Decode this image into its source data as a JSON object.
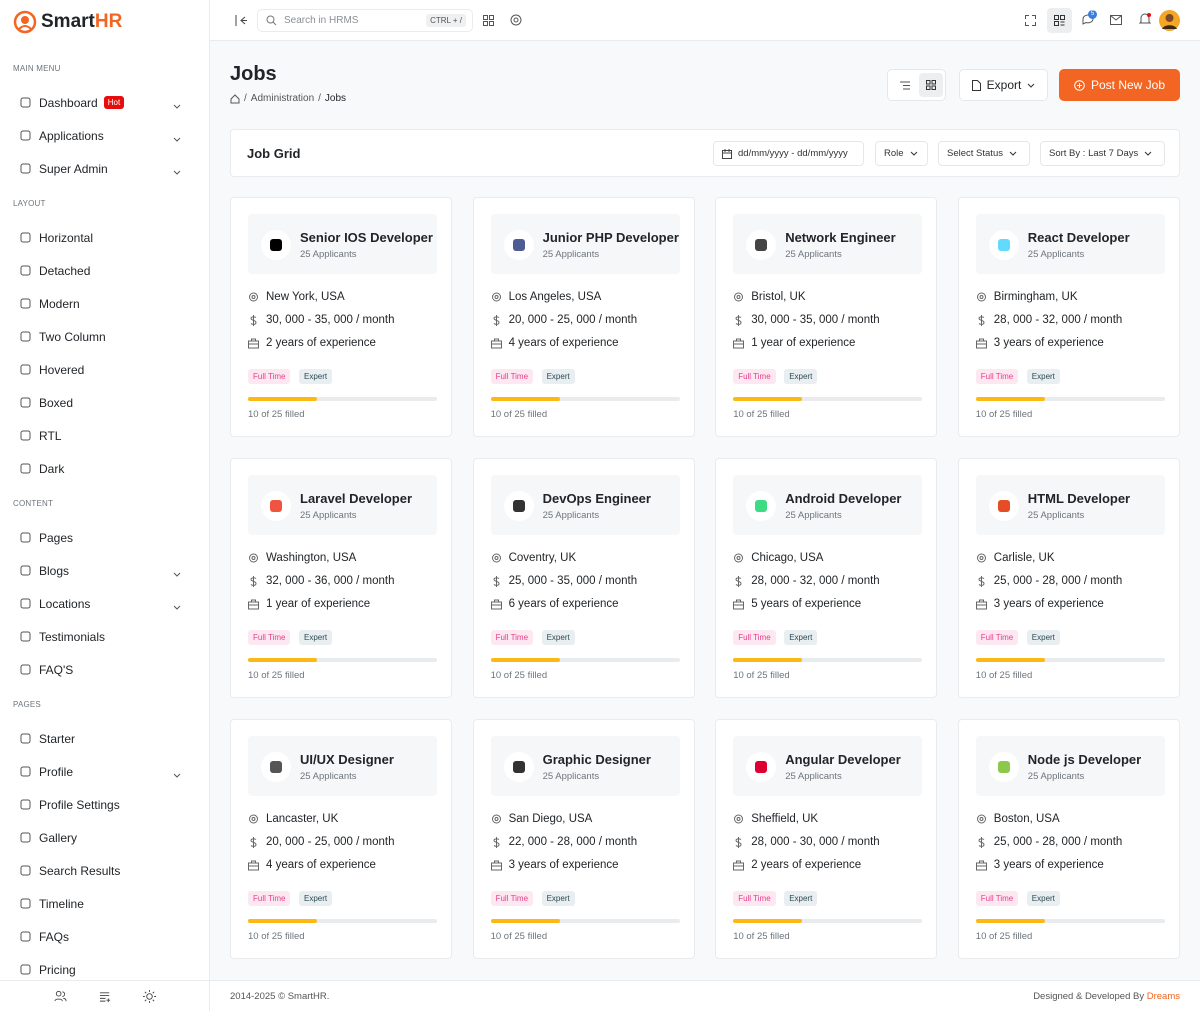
{
  "brand": {
    "name_a": "Smart",
    "name_b": "HR"
  },
  "sidebar": {
    "sections": [
      {
        "title": "MAIN MENU",
        "items": [
          {
            "label": "Dashboard",
            "badge": "Hot",
            "chevron": true
          },
          {
            "label": "Applications",
            "chevron": true
          },
          {
            "label": "Super Admin",
            "chevron": true
          }
        ]
      },
      {
        "title": "LAYOUT",
        "items": [
          {
            "label": "Horizontal"
          },
          {
            "label": "Detached"
          },
          {
            "label": "Modern"
          },
          {
            "label": "Two Column"
          },
          {
            "label": "Hovered"
          },
          {
            "label": "Boxed"
          },
          {
            "label": "RTL"
          },
          {
            "label": "Dark"
          }
        ]
      },
      {
        "title": "CONTENT",
        "items": [
          {
            "label": "Pages"
          },
          {
            "label": "Blogs",
            "chevron": true
          },
          {
            "label": "Locations",
            "chevron": true
          },
          {
            "label": "Testimonials"
          },
          {
            "label": "FAQ'S"
          }
        ]
      },
      {
        "title": "PAGES",
        "items": [
          {
            "label": "Starter"
          },
          {
            "label": "Profile",
            "chevron": true
          },
          {
            "label": "Profile Settings"
          },
          {
            "label": "Gallery"
          },
          {
            "label": "Search Results"
          },
          {
            "label": "Timeline"
          },
          {
            "label": "FAQs"
          },
          {
            "label": "Pricing"
          }
        ]
      }
    ]
  },
  "topbar": {
    "search_placeholder": "Search in HRMS",
    "shortcut": "CTRL + /",
    "chat_count": "5"
  },
  "header": {
    "title": "Jobs",
    "breadcrumb": [
      "Administration",
      "Jobs"
    ],
    "export": "Export",
    "post": "Post New Job"
  },
  "filters": {
    "title": "Job Grid",
    "date": "dd/mm/yyyy - dd/mm/yyyy",
    "role": "Role",
    "status": "Select Status",
    "sort": "Sort By : Last 7 Days"
  },
  "jobs": [
    {
      "title": "Senior IOS Developer",
      "applicants": "25 Applicants",
      "location": "New York, USA",
      "salary": "30, 000 - 35, 000 / month",
      "experience": "2 years of experience",
      "type": "Full Time",
      "level": "Expert",
      "filled": "10 of 25 filled"
    },
    {
      "title": "Junior PHP Developer",
      "applicants": "25 Applicants",
      "location": "Los Angeles, USA",
      "salary": "20, 000 - 25, 000 / month",
      "experience": "4 years of experience",
      "type": "Full Time",
      "level": "Expert",
      "filled": "10 of 25 filled"
    },
    {
      "title": "Network Engineer",
      "applicants": "25 Applicants",
      "location": "Bristol, UK",
      "salary": "30, 000 - 35, 000 / month",
      "experience": "1 year of experience",
      "type": "Full Time",
      "level": "Expert",
      "filled": "10 of 25 filled"
    },
    {
      "title": "React Developer",
      "applicants": "25 Applicants",
      "location": "Birmingham, UK",
      "salary": "28, 000 - 32, 000 / month",
      "experience": "3 years of experience",
      "type": "Full Time",
      "level": "Expert",
      "filled": "10 of 25 filled"
    },
    {
      "title": "Laravel Developer",
      "applicants": "25 Applicants",
      "location": "Washington, USA",
      "salary": "32, 000 - 36, 000 / month",
      "experience": "1 year of experience",
      "type": "Full Time",
      "level": "Expert",
      "filled": "10 of 25 filled"
    },
    {
      "title": "DevOps Engineer",
      "applicants": "25 Applicants",
      "location": "Coventry, UK",
      "salary": "25, 000 - 35, 000 / month",
      "experience": "6 years of experience",
      "type": "Full Time",
      "level": "Expert",
      "filled": "10 of 25 filled"
    },
    {
      "title": "Android Developer",
      "applicants": "25 Applicants",
      "location": "Chicago, USA",
      "salary": "28, 000 - 32, 000 / month",
      "experience": "5 years of experience",
      "type": "Full Time",
      "level": "Expert",
      "filled": "10 of 25 filled"
    },
    {
      "title": "HTML Developer",
      "applicants": "25 Applicants",
      "location": "Carlisle, UK",
      "salary": "25, 000 - 28, 000 / month",
      "experience": "3 years of experience",
      "type": "Full Time",
      "level": "Expert",
      "filled": "10 of 25 filled"
    },
    {
      "title": "UI/UX Designer",
      "applicants": "25 Applicants",
      "location": "Lancaster, UK",
      "salary": "20, 000 - 25, 000 / month",
      "experience": "4 years of experience",
      "type": "Full Time",
      "level": "Expert",
      "filled": "10 of 25 filled"
    },
    {
      "title": "Graphic Designer",
      "applicants": "25 Applicants",
      "location": "San Diego, USA",
      "salary": "22, 000 - 28, 000 / month",
      "experience": "3  years of experience",
      "type": "Full Time",
      "level": "Expert",
      "filled": "10 of 25 filled"
    },
    {
      "title": "Angular Developer",
      "applicants": "25 Applicants",
      "location": "Sheffield, UK",
      "salary": "28, 000 - 30, 000 / month",
      "experience": "2 years of experience",
      "type": "Full Time",
      "level": "Expert",
      "filled": "10 of 25 filled"
    },
    {
      "title": "Node js Developer",
      "applicants": "25 Applicants",
      "location": "Boston, USA",
      "salary": "25, 000 - 28, 000 / month",
      "experience": "3 years of experience",
      "type": "Full Time",
      "level": "Expert",
      "filled": "10 of 25 filled"
    }
  ],
  "footer": {
    "copyright": "2014-2025 © SmartHR.",
    "credit": "Designed & Developed By",
    "credit_link": "Dreams"
  }
}
